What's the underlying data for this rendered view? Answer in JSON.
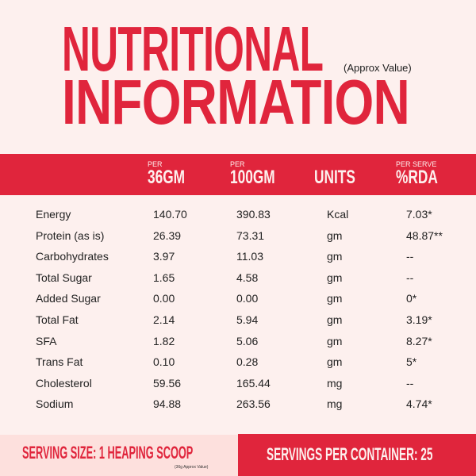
{
  "title": {
    "line1": "NUTRITIONAL",
    "line2": "INFORMATION",
    "note": "(Approx Value)"
  },
  "header": [
    {
      "small": "PER",
      "big": "36GM"
    },
    {
      "small": "PER",
      "big": "100GM"
    },
    {
      "small": "",
      "big": "UNITS"
    },
    {
      "small": "PER SERVE",
      "big": "%RDA"
    }
  ],
  "rows": [
    [
      "Energy",
      "140.70",
      "390.83",
      "Kcal",
      "7.03*"
    ],
    [
      "Protein (as is)",
      "26.39",
      "73.31",
      "gm",
      "48.87**"
    ],
    [
      "Carbohydrates",
      "3.97",
      "11.03",
      "gm",
      "--"
    ],
    [
      "Total Sugar",
      "1.65",
      "4.58",
      "gm",
      "--"
    ],
    [
      "Added Sugar",
      "0.00",
      "0.00",
      "gm",
      "0*"
    ],
    [
      "Total Fat",
      "2.14",
      "5.94",
      "gm",
      "3.19*"
    ],
    [
      "SFA",
      "1.82",
      "5.06",
      "gm",
      "8.27*"
    ],
    [
      "Trans Fat",
      "0.10",
      "0.28",
      "gm",
      "5*"
    ],
    [
      "Cholesterol",
      "59.56",
      "165.44",
      "mg",
      "--"
    ],
    [
      "Sodium",
      "94.88",
      "263.56",
      "mg",
      "4.74*"
    ]
  ],
  "footer": {
    "serving_size": "SERVING SIZE: 1 HEAPING SCOOP",
    "serving_note": "(36g Approx Value)",
    "servings": "SERVINGS PER CONTAINER: 25"
  },
  "colors": {
    "accent": "#e0253c",
    "background": "#fdf0ee",
    "footer_left": "#fde0dd"
  }
}
